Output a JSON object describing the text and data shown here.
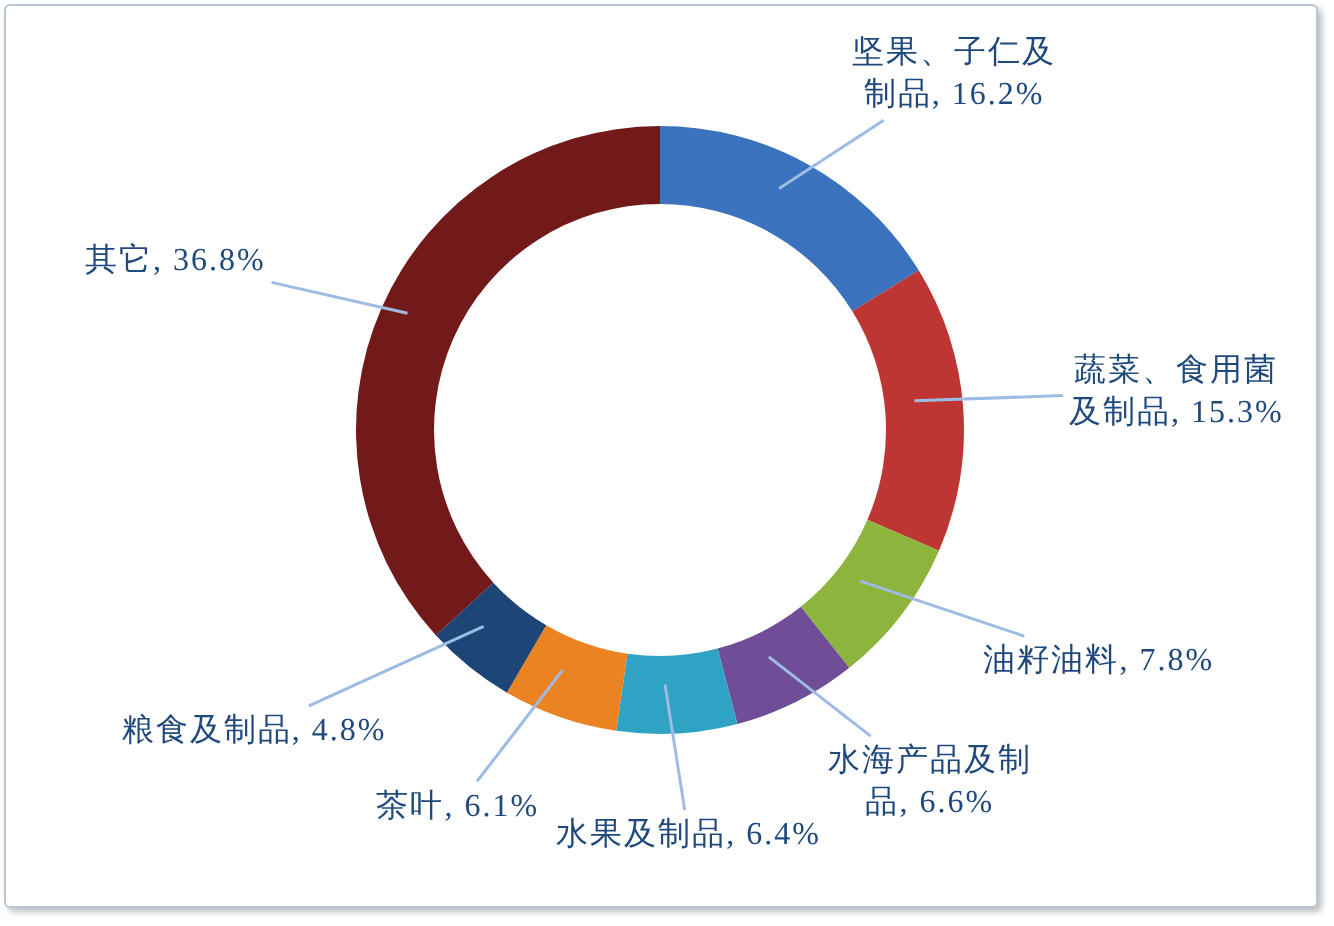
{
  "chart_data": {
    "type": "donut",
    "categories": [
      "坚果、子仁及制品",
      "蔬菜、食用菌及制品",
      "油籽油料",
      "水海产品及制品",
      "水果及制品",
      "茶叶",
      "粮食及制品",
      "其它"
    ],
    "values": [
      16.2,
      15.3,
      7.8,
      6.6,
      6.4,
      6.1,
      4.8,
      36.8
    ],
    "colors": [
      "#3a72bd",
      "#be3633",
      "#8db53d",
      "#6f4e97",
      "#2fa3c4",
      "#ec8322",
      "#1d4575",
      "#721a1a"
    ],
    "value_labels": [
      "16.2%",
      "15.3%",
      "7.8%",
      "6.6%",
      "6.4%",
      "6.1%",
      "4.8%",
      "36.8%"
    ]
  }
}
